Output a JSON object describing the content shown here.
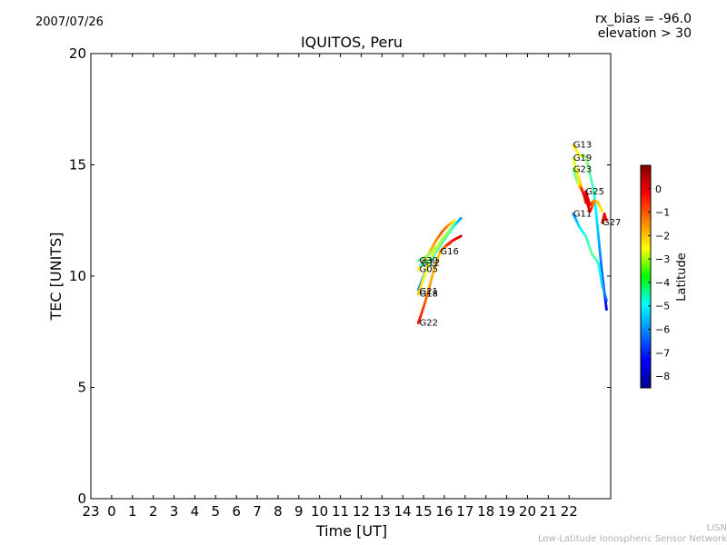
{
  "header": {
    "date": "2007/07/26",
    "bias_text": "rx_bias = -96.0",
    "elevation_text": "elevation > 30"
  },
  "footer": {
    "line1": "LISN",
    "line2": "Low-Latitude Ionospheric Sensor Network"
  },
  "chart_data": {
    "type": "scatter",
    "title": "IQUITOS, Peru",
    "xlabel": "Time [UT]",
    "ylabel": "TEC [UNITS]",
    "ylim": [
      0,
      20
    ],
    "xlim": [
      -1,
      24
    ],
    "x_ticks": [
      {
        "value": -1,
        "label": "23"
      },
      {
        "value": 0,
        "label": "0"
      },
      {
        "value": 1,
        "label": "1"
      },
      {
        "value": 2,
        "label": "2"
      },
      {
        "value": 3,
        "label": "3"
      },
      {
        "value": 4,
        "label": "4"
      },
      {
        "value": 5,
        "label": "5"
      },
      {
        "value": 6,
        "label": "6"
      },
      {
        "value": 7,
        "label": "7"
      },
      {
        "value": 8,
        "label": "8"
      },
      {
        "value": 9,
        "label": "9"
      },
      {
        "value": 10,
        "label": "10"
      },
      {
        "value": 11,
        "label": "11"
      },
      {
        "value": 12,
        "label": "12"
      },
      {
        "value": 13,
        "label": "13"
      },
      {
        "value": 14,
        "label": "14"
      },
      {
        "value": 15,
        "label": "15"
      },
      {
        "value": 16,
        "label": "16"
      },
      {
        "value": 17,
        "label": "17"
      },
      {
        "value": 18,
        "label": "18"
      },
      {
        "value": 19,
        "label": "19"
      },
      {
        "value": 20,
        "label": "20"
      },
      {
        "value": 21,
        "label": "21"
      },
      {
        "value": 22,
        "label": "22"
      }
    ],
    "y_ticks": [
      {
        "value": 0,
        "label": "0"
      },
      {
        "value": 5,
        "label": "5"
      },
      {
        "value": 10,
        "label": "10"
      },
      {
        "value": 15,
        "label": "15"
      },
      {
        "value": 20,
        "label": "20"
      }
    ],
    "grid": false,
    "colorbar": {
      "label": "Latitude",
      "range": [
        -8.5,
        1
      ],
      "ticks": [
        {
          "value": 0,
          "label": "0"
        },
        {
          "value": -1,
          "label": "−1"
        },
        {
          "value": -2,
          "label": "−2"
        },
        {
          "value": -3,
          "label": "−3"
        },
        {
          "value": -4,
          "label": "−4"
        },
        {
          "value": -5,
          "label": "−5"
        },
        {
          "value": -6,
          "label": "−6"
        },
        {
          "value": -7,
          "label": "−7"
        },
        {
          "value": -8,
          "label": "−8"
        }
      ],
      "colormap": "jet"
    },
    "series": [
      {
        "name": "G22",
        "label_at": [
          14.8,
          7.9
        ],
        "points": [
          [
            14.75,
            7.9,
            -0.2
          ],
          [
            15.0,
            8.6,
            -0.8
          ],
          [
            15.25,
            9.4,
            -1.5
          ],
          [
            15.5,
            10.3,
            -2.0
          ],
          [
            15.8,
            11.1,
            -2.0
          ],
          [
            16.1,
            11.4,
            -1.0
          ],
          [
            16.4,
            11.6,
            -0.2
          ],
          [
            16.8,
            11.8,
            0.3
          ]
        ]
      },
      {
        "name": "G21",
        "label_at": [
          14.8,
          9.3
        ],
        "points": [
          [
            14.75,
            9.4,
            -6.0
          ],
          [
            15.0,
            10.0,
            -5.8
          ],
          [
            15.3,
            10.6,
            -5.3
          ],
          [
            15.6,
            11.1,
            -4.8
          ],
          [
            15.9,
            11.5,
            -4.3
          ],
          [
            16.2,
            11.9,
            -4.0
          ],
          [
            16.5,
            12.3,
            -5.3
          ],
          [
            16.8,
            12.6,
            -5.8
          ]
        ]
      },
      {
        "name": "G18",
        "label_at": [
          14.8,
          9.2
        ],
        "points": [
          [
            14.75,
            9.2,
            -2.0
          ],
          [
            15.0,
            9.9,
            -2.5
          ],
          [
            15.3,
            10.7,
            -2.8
          ],
          [
            15.6,
            11.2,
            -3.0
          ],
          [
            15.9,
            11.7,
            -3.2
          ],
          [
            16.2,
            12.0,
            -3.5
          ],
          [
            16.5,
            12.4,
            -4.0
          ]
        ]
      },
      {
        "name": "G05",
        "label_at": [
          14.8,
          10.3
        ],
        "points": [
          [
            14.75,
            10.3,
            -2.5
          ],
          [
            15.0,
            10.6,
            -2.2
          ],
          [
            15.3,
            11.1,
            -2.0
          ],
          [
            15.6,
            11.6,
            -1.5
          ],
          [
            15.9,
            12.0,
            -1.0
          ],
          [
            16.2,
            12.3,
            -1.5
          ],
          [
            16.5,
            12.5,
            -2.5
          ]
        ]
      },
      {
        "name": "G30",
        "label_at": [
          14.8,
          10.7
        ],
        "points": [
          [
            14.75,
            10.7,
            -4.0
          ],
          [
            15.0,
            10.8,
            -3.8
          ],
          [
            15.3,
            11.0,
            -3.5
          ],
          [
            15.6,
            11.3,
            -3.2
          ]
        ]
      },
      {
        "name": "G12",
        "label_at": [
          14.9,
          10.6
        ],
        "points": [
          [
            14.85,
            10.5,
            -4.5
          ],
          [
            15.1,
            10.6,
            -4.2
          ],
          [
            15.4,
            10.8,
            -4.0
          ]
        ]
      },
      {
        "name": "G16",
        "label_at": [
          15.8,
          11.1
        ],
        "points": [
          [
            15.8,
            11.1,
            -1.5
          ],
          [
            16.0,
            11.3,
            -1.2
          ],
          [
            16.3,
            11.5,
            -0.5
          ]
        ]
      },
      {
        "name": "G13",
        "label_at": [
          22.2,
          15.9
        ],
        "points": [
          [
            22.2,
            15.9,
            -2.0
          ],
          [
            22.5,
            15.4,
            -2.8
          ],
          [
            22.8,
            15.4,
            -3.5
          ],
          [
            23.0,
            14.6,
            -4.0
          ],
          [
            23.2,
            13.8,
            -4.5
          ],
          [
            23.4,
            11.9,
            -5.5
          ],
          [
            23.6,
            10.0,
            -6.5
          ],
          [
            23.8,
            8.5,
            -7.5
          ]
        ]
      },
      {
        "name": "G19",
        "label_at": [
          22.2,
          15.3
        ],
        "points": [
          [
            22.2,
            15.3,
            -3.0
          ],
          [
            22.4,
            14.6,
            -2.5
          ],
          [
            22.6,
            14.0,
            -2.0
          ],
          [
            22.8,
            13.3,
            -0.5
          ]
        ]
      },
      {
        "name": "G23",
        "label_at": [
          22.2,
          14.8
        ],
        "points": [
          [
            22.2,
            14.8,
            -4.0
          ],
          [
            22.4,
            14.2,
            -3.5
          ],
          [
            22.6,
            13.9,
            -0.5
          ],
          [
            22.8,
            13.5,
            0.3
          ],
          [
            23.0,
            12.9,
            0.0
          ],
          [
            23.2,
            13.3,
            -1.5
          ]
        ]
      },
      {
        "name": "G25",
        "label_at": [
          22.8,
          13.8
        ],
        "points": [
          [
            22.8,
            13.8,
            0.5
          ],
          [
            23.0,
            13.2,
            0.0
          ],
          [
            23.2,
            13.4,
            -1.5
          ],
          [
            23.4,
            13.3,
            -2.0
          ],
          [
            23.6,
            12.9,
            -2.5
          ]
        ]
      },
      {
        "name": "G11",
        "label_at": [
          22.2,
          12.8
        ],
        "points": [
          [
            22.2,
            12.8,
            -6.0
          ],
          [
            22.5,
            12.2,
            -5.2
          ],
          [
            22.8,
            11.8,
            -4.5
          ],
          [
            23.1,
            11.0,
            -4.0
          ],
          [
            23.4,
            10.6,
            -4.5
          ],
          [
            23.6,
            9.6,
            -5.5
          ],
          [
            23.8,
            8.9,
            -6.5
          ]
        ]
      },
      {
        "name": "G27",
        "label_at": [
          23.6,
          12.4
        ],
        "points": [
          [
            23.6,
            12.4,
            0.3
          ],
          [
            23.7,
            12.8,
            0.0
          ],
          [
            23.8,
            12.5,
            -0.5
          ]
        ]
      }
    ]
  }
}
